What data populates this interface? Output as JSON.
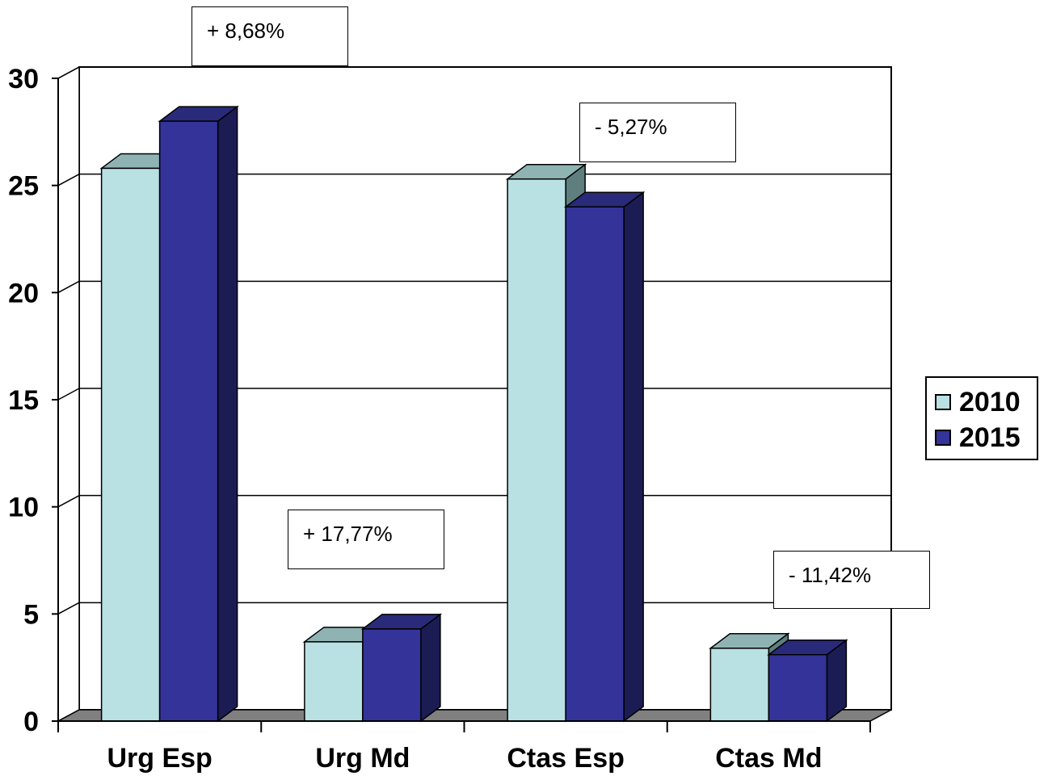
{
  "chart_data": {
    "type": "bar",
    "categories": [
      "Urg Esp",
      "Urg Md",
      "Ctas Esp",
      "Ctas Md"
    ],
    "series": [
      {
        "name": "2010",
        "values": [
          25.8,
          3.7,
          25.3,
          3.4
        ],
        "color": "#b9e0e2"
      },
      {
        "name": "2015",
        "values": [
          28.0,
          4.3,
          24.0,
          3.1
        ],
        "color": "#333399"
      }
    ],
    "ylim": [
      0,
      30
    ],
    "yticks": [
      "0",
      "5",
      "10",
      "15",
      "20",
      "25",
      "30"
    ],
    "grid": true,
    "legend_position": "right",
    "annotations": [
      "+ 8,68%",
      "+ 17,77%",
      "- 5,27%",
      "- 11,42%"
    ],
    "title": "",
    "xlabel": "",
    "ylabel": ""
  }
}
